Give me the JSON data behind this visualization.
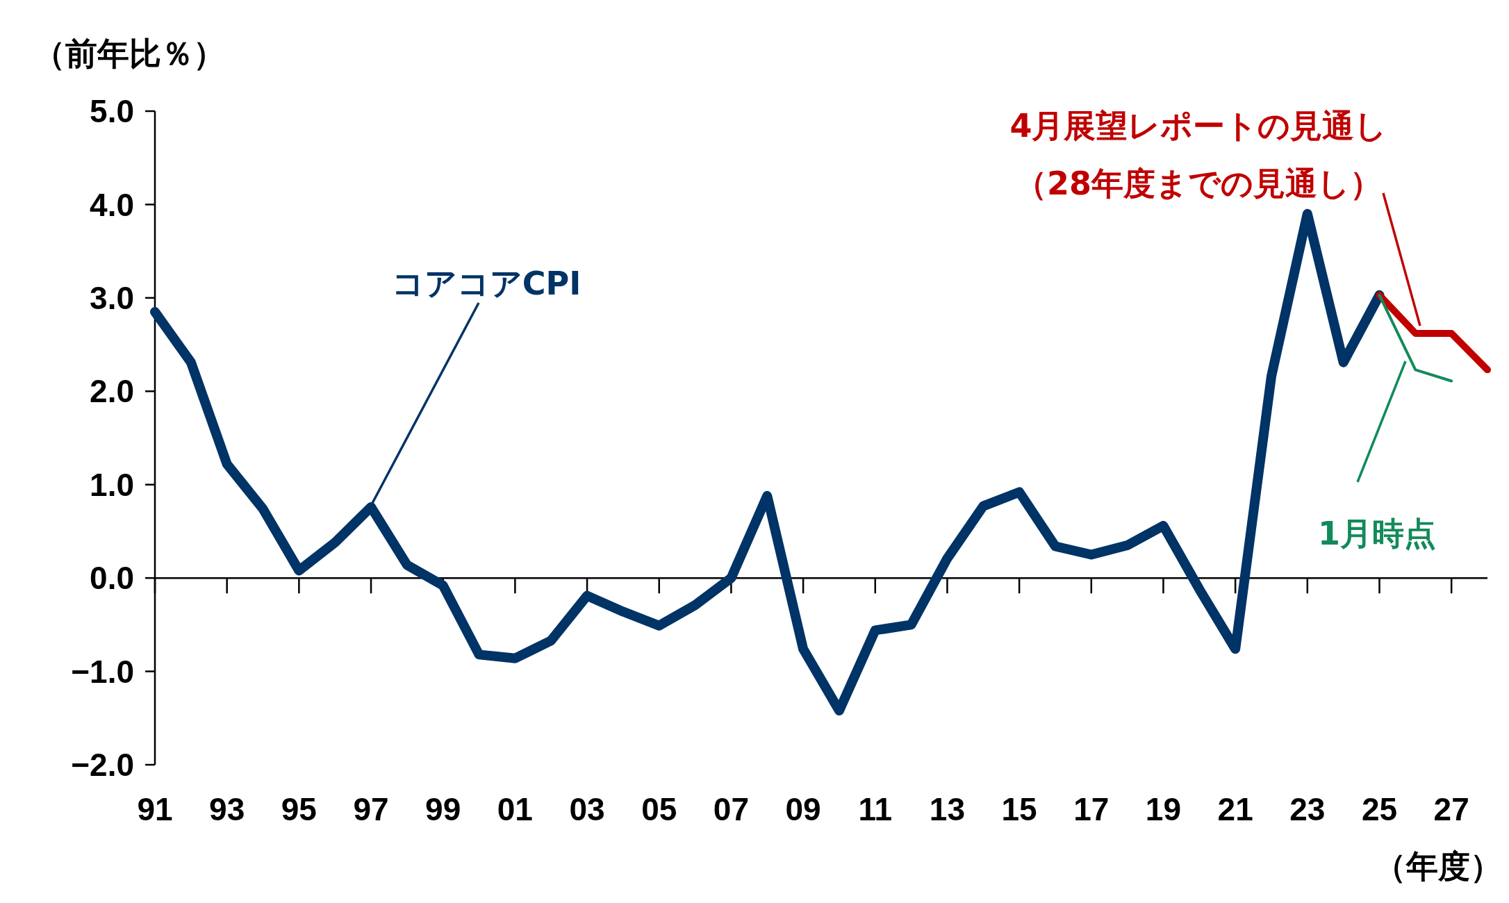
{
  "chart_data": {
    "type": "line",
    "ylabel": "（前年比％）",
    "xlabel": "（年度）",
    "categories": [
      "91",
      null,
      "93",
      null,
      "95",
      null,
      "97",
      null,
      "99",
      null,
      "01",
      null,
      "03",
      null,
      "05",
      null,
      "07",
      null,
      "09",
      null,
      "11",
      null,
      "13",
      null,
      "15",
      null,
      "17",
      null,
      "19",
      null,
      "21",
      null,
      "23",
      null,
      "25",
      null,
      "27",
      null
    ],
    "ylim": [
      -2,
      5
    ],
    "yticks": [
      {
        "value": -2,
        "label": "−2.0"
      },
      {
        "value": -1,
        "label": "−1.0"
      },
      {
        "value": 0,
        "label": "0.0"
      },
      {
        "value": 1,
        "label": "1.0"
      },
      {
        "value": 2,
        "label": "2.0"
      },
      {
        "value": 3,
        "label": "3.0"
      },
      {
        "value": 4,
        "label": "4.0"
      },
      {
        "value": 5,
        "label": "5.0"
      }
    ],
    "marker": "none",
    "line_style": "solid",
    "series": [
      {
        "name": "コアコアCPI",
        "color": "#003366",
        "values": [
          2.85,
          2.31,
          1.22,
          0.74,
          0.08,
          0.38,
          0.76,
          0.14,
          -0.08,
          -0.82,
          -0.86,
          -0.67,
          -0.19,
          -0.36,
          -0.51,
          -0.29,
          0.0,
          0.88,
          -0.76,
          -1.42,
          -0.56,
          -0.5,
          0.21,
          0.77,
          0.92,
          0.34,
          0.25,
          0.35,
          0.56,
          -0.12,
          -0.76,
          2.16,
          3.9,
          2.31,
          3.03,
          null,
          null,
          null
        ]
      },
      {
        "name": "4月展望レポートの見通し",
        "color": "#c00000",
        "values": [
          null,
          null,
          null,
          null,
          null,
          null,
          null,
          null,
          null,
          null,
          null,
          null,
          null,
          null,
          null,
          null,
          null,
          null,
          null,
          null,
          null,
          null,
          null,
          null,
          null,
          null,
          null,
          null,
          null,
          null,
          null,
          null,
          null,
          null,
          3.03,
          2.62,
          2.62,
          2.23
        ]
      },
      {
        "name": "1月時点",
        "color": "#138a5a",
        "values": [
          null,
          null,
          null,
          null,
          null,
          null,
          null,
          null,
          null,
          null,
          null,
          null,
          null,
          null,
          null,
          null,
          null,
          null,
          null,
          null,
          null,
          null,
          null,
          null,
          null,
          null,
          null,
          null,
          null,
          null,
          null,
          null,
          null,
          null,
          3.03,
          2.23,
          2.11,
          null
        ]
      }
    ],
    "annotations": [
      "（28年度までの見通し）"
    ]
  }
}
